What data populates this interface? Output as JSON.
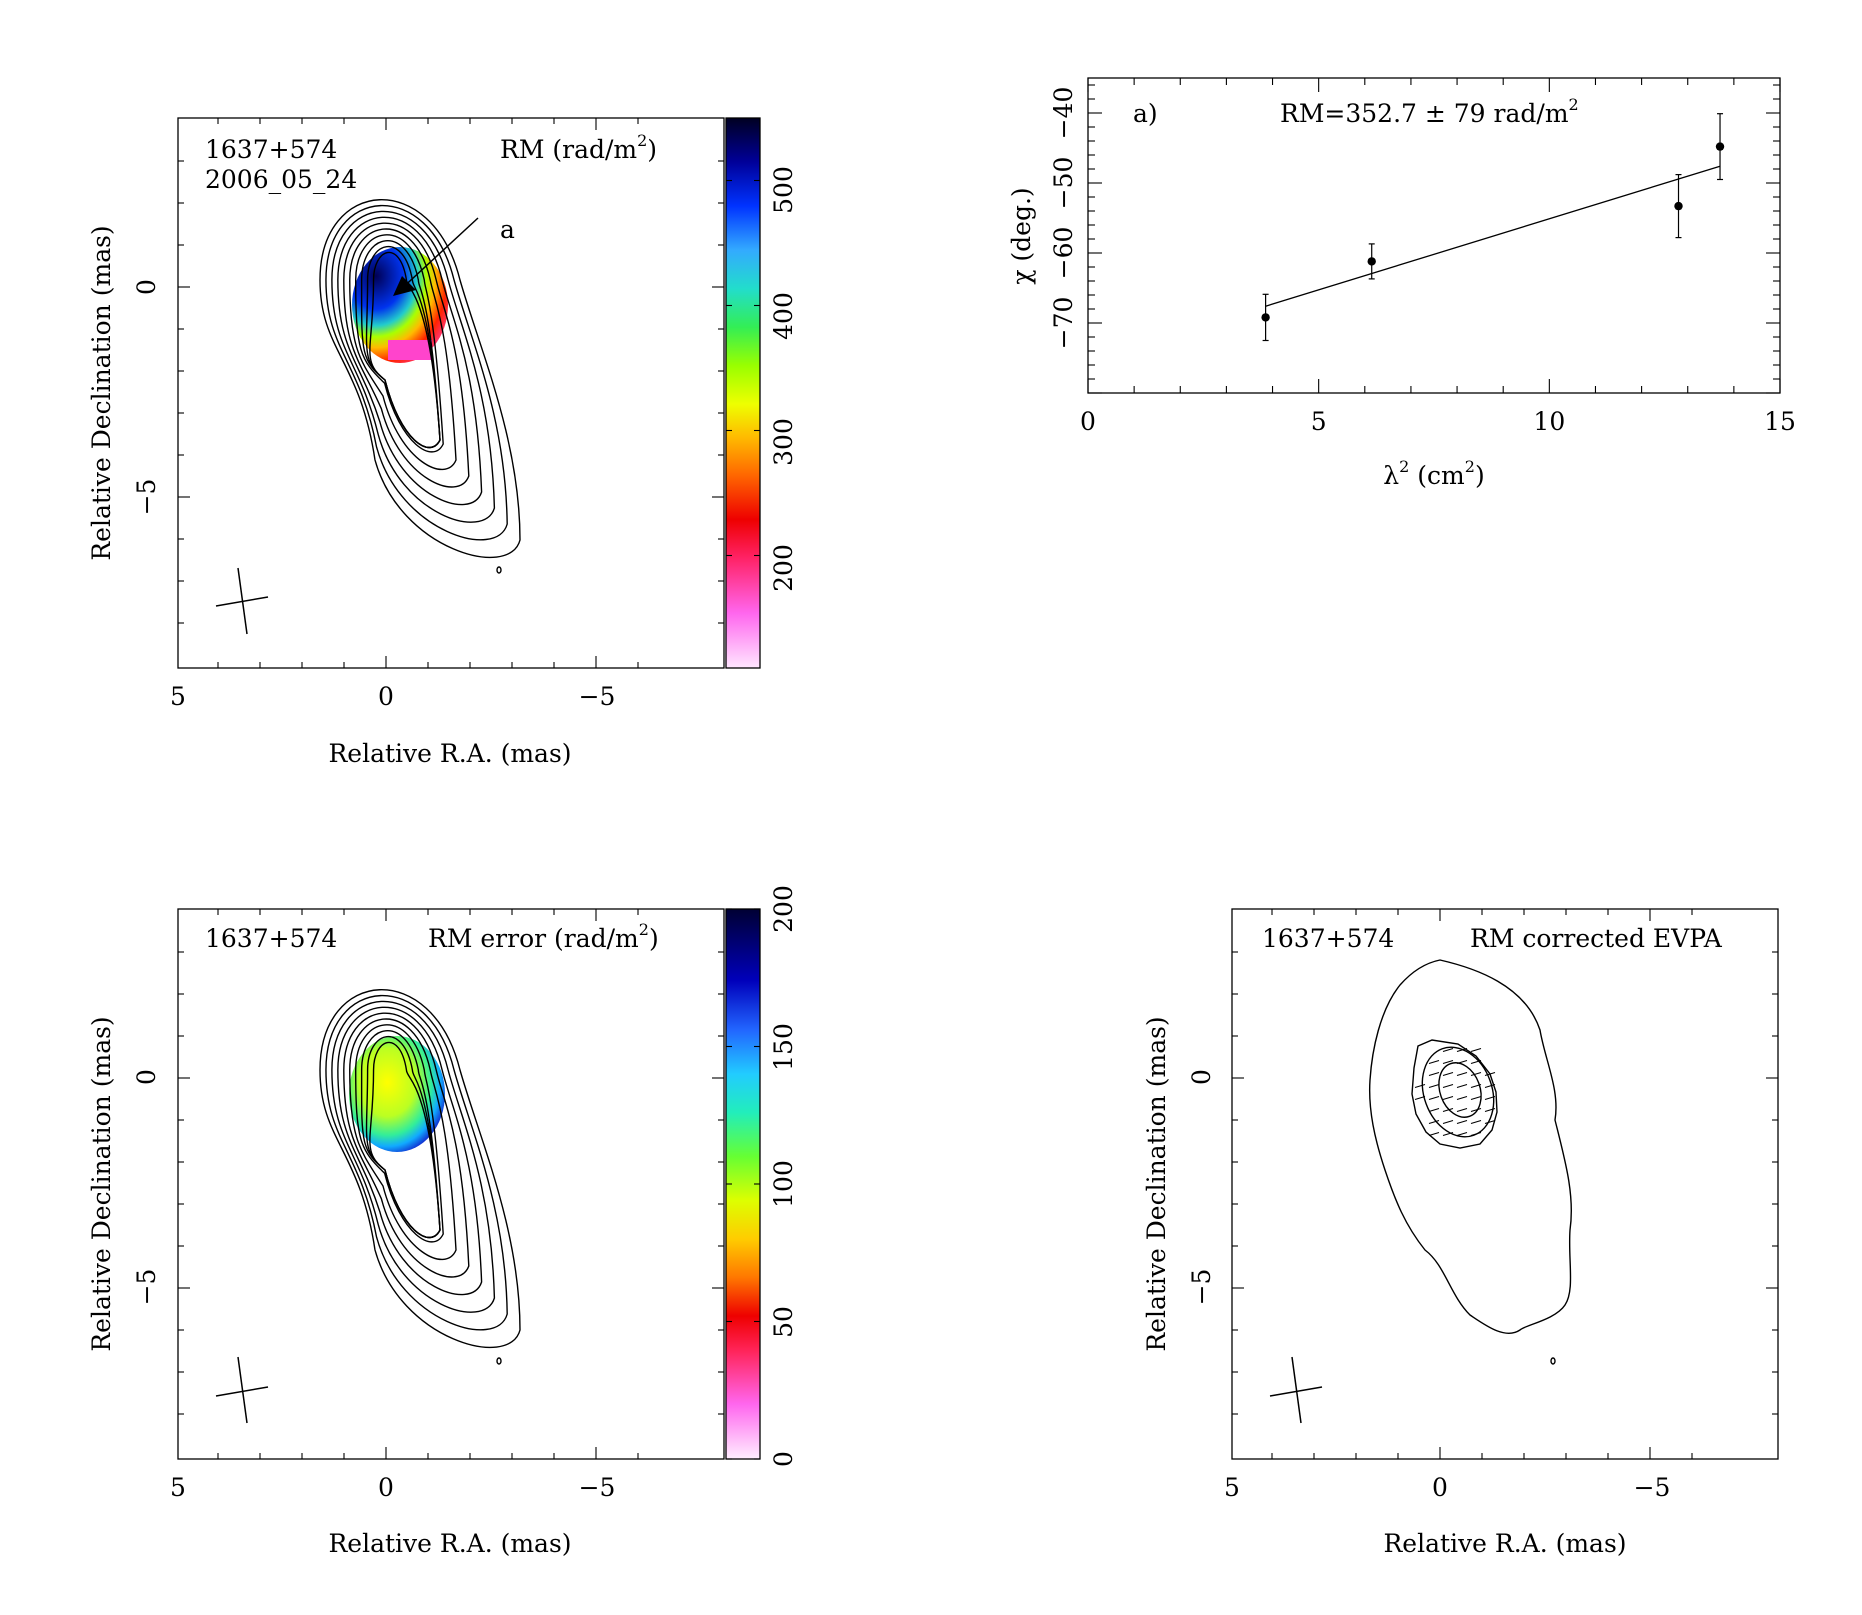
{
  "panel_map_rm": {
    "source": "1637+574",
    "epoch": "2006_05_24",
    "title": "RM (rad/m",
    "title_sup": "2",
    "title_close": ")",
    "point_label": "a",
    "xlabel": "Relative R.A. (mas)",
    "ylabel": "Relative Declination (mas)",
    "xticks": [
      "5",
      "0",
      "−5"
    ],
    "yticks": [
      "0",
      "−5"
    ],
    "colorbar_ticks": [
      "200",
      "300",
      "400",
      "500"
    ],
    "colorbar_range": [
      110,
      550
    ]
  },
  "panel_map_err": {
    "source": "1637+574",
    "title": "RM error (rad/m",
    "title_sup": "2",
    "title_close": ")",
    "xlabel": "Relative R.A. (mas)",
    "ylabel": "Relative Declination (mas)",
    "xticks": [
      "5",
      "0",
      "−5"
    ],
    "yticks": [
      "0",
      "−5"
    ],
    "colorbar_ticks": [
      "0",
      "50",
      "100",
      "150",
      "200"
    ],
    "colorbar_range": [
      0,
      200
    ]
  },
  "panel_map_evpa": {
    "source": "1637+574",
    "title": "RM corrected EVPA",
    "xlabel": "Relative R.A. (mas)",
    "ylabel": "Relative Declination (mas)",
    "xticks": [
      "5",
      "0",
      "−5"
    ],
    "yticks": [
      "0",
      "−5"
    ]
  },
  "chart_data": {
    "type": "scatter",
    "panel_label": "a)",
    "annotation": "RM=352.7 ± 79 rad/m",
    "annotation_sup": "2",
    "xlabel": "λ",
    "xlabel_sup": "2",
    "xlabel_unit": " (cm",
    "xlabel_unit_sup": "2",
    "xlabel_close": ")",
    "ylabel": "χ (deg.)",
    "xlim": [
      0,
      15
    ],
    "ylim": [
      -80,
      -35
    ],
    "xticks": [
      0,
      5,
      10,
      15
    ],
    "yticks": [
      -70,
      -60,
      -50,
      -40
    ],
    "ytick_labels": [
      "−70",
      "−60",
      "−50",
      "−40"
    ],
    "points": [
      {
        "x": 3.85,
        "y": -69.2,
        "err": 3.3
      },
      {
        "x": 6.15,
        "y": -61.2,
        "err": 2.5
      },
      {
        "x": 12.8,
        "y": -53.3,
        "err": 4.5
      },
      {
        "x": 13.7,
        "y": -44.8,
        "err": 4.7
      }
    ],
    "fit": {
      "x": [
        3.85,
        13.7
      ],
      "y": [
        -67.6,
        -47.6
      ]
    }
  }
}
